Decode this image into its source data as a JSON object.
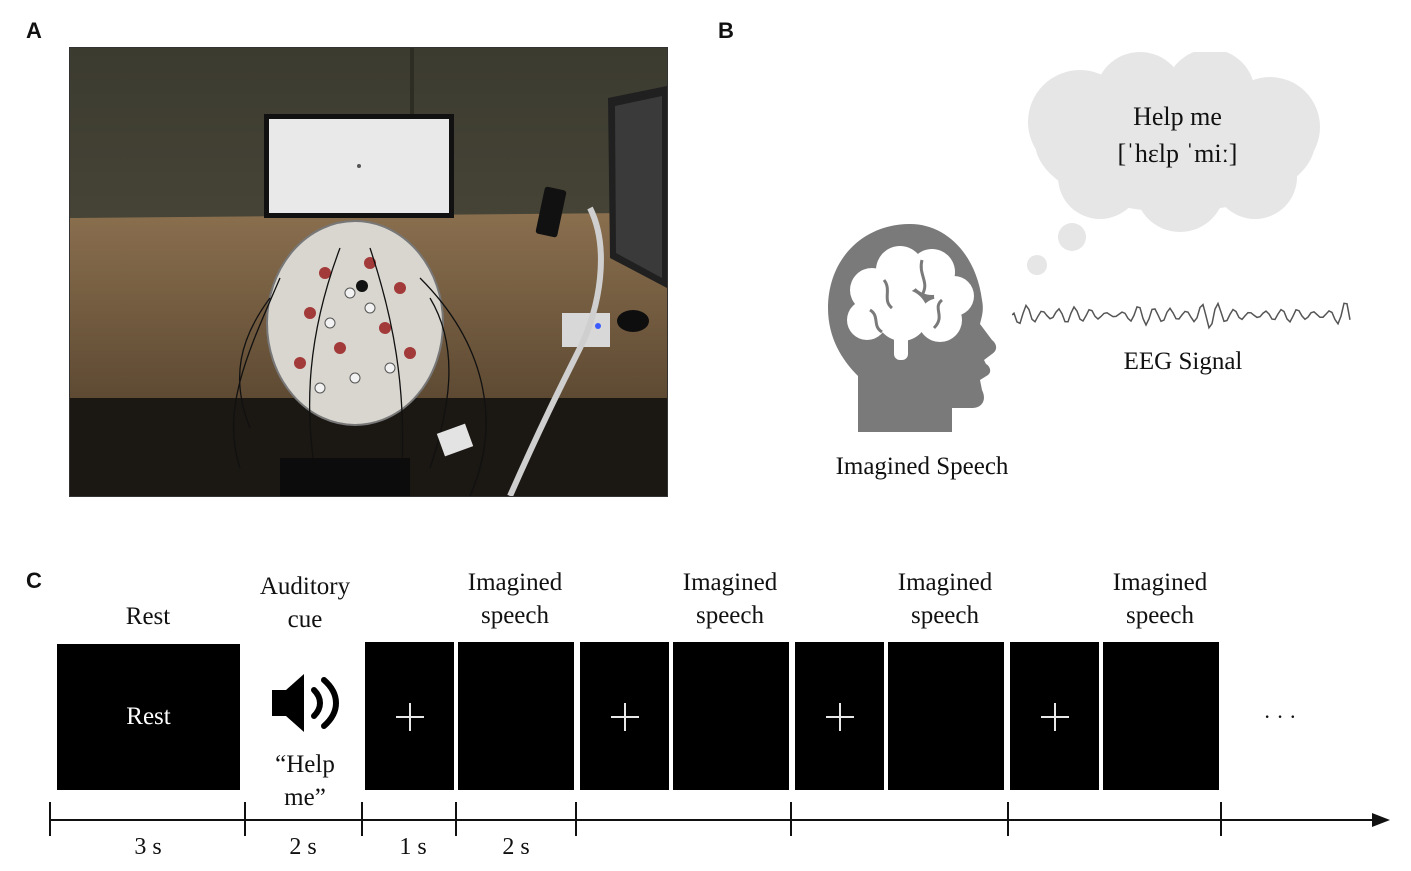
{
  "panels": {
    "a": {
      "letter": "A"
    },
    "b": {
      "letter": "B",
      "thought_line1": "Help me",
      "thought_line2": "[ˈhɛlp ˈmiː]",
      "signal_label": "EEG Signal",
      "head_label": "Imagined Speech"
    },
    "c": {
      "letter": "C",
      "rest_title": "Rest",
      "rest_screen_text": "Rest",
      "cue_title_line1": "Auditory",
      "cue_title_line2": "cue",
      "cue_quote_line1": "“Help",
      "cue_quote_line2": "me”",
      "trials": [
        {
          "line1": "Imagined",
          "line2": "speech"
        },
        {
          "line1": "Imagined",
          "line2": "speech"
        },
        {
          "line1": "Imagined",
          "line2": "speech"
        },
        {
          "line1": "Imagined",
          "line2": "speech"
        }
      ],
      "ellipsis": "· · ·",
      "durations": [
        "3 s",
        "2 s",
        "1 s",
        "2 s"
      ]
    }
  },
  "icons": {
    "speaker": "speaker-icon",
    "head": "head-brain-icon",
    "cloud": "thought-cloud-icon",
    "fixation": "fixation-cross-icon"
  },
  "colors": {
    "block": "#000000",
    "head": "#7a7a7a",
    "cloud": "#e6e6e6",
    "axis": "#111111"
  }
}
